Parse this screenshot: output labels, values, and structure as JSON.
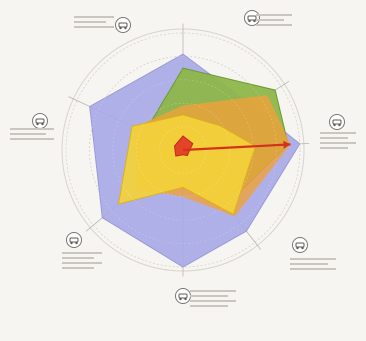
{
  "chart_data": {
    "type": "radar",
    "title": "",
    "axes": [],
    "axis_angles_deg": [
      -90,
      -33,
      -3,
      52,
      90,
      140,
      -155
    ],
    "range": [
      0,
      5
    ],
    "grid_levels": 5,
    "series": [
      {
        "values": [
          4.1,
          3.5,
          5.0,
          4.4,
          5.0,
          4.5,
          4.4
        ],
        "fill": "#a9a8e8",
        "stroke": "#9a99d8",
        "opacity": 0.9
      },
      {
        "values": [
          3.5,
          4.7,
          4.5,
          3.0,
          1.6,
          1.9,
          1.8
        ],
        "fill": "#8db64a",
        "stroke": "#6e9a33",
        "opacity": 0.95
      },
      {
        "values": [
          1.5,
          1.9,
          3.1,
          3.5,
          1.6,
          3.6,
          2.4
        ],
        "fill": "#f3d13a",
        "stroke": "#d9b21c",
        "opacity": 0.92
      },
      {
        "values": [
          0.6,
          0.5,
          0.3,
          0.3,
          0.2,
          0.4,
          0.4
        ],
        "fill": "#e23b26",
        "stroke": "#c02a18",
        "opacity": 0.95
      }
    ],
    "orange_overlay": {
      "values": [
        1.9,
        4.3,
        4.6,
        3.6,
        2.0,
        2.6,
        2.3
      ],
      "fill": "#f0a13a"
    },
    "arrow": {
      "from_axis": 2,
      "value": 4.6,
      "color": "#d3321c"
    },
    "grid": true,
    "legend": "none"
  },
  "icons": [
    "car-icon",
    "bicycle-icon",
    "bus-icon",
    "scooter-icon",
    "phone-icon",
    "walk-icon",
    "bike-rack-icon"
  ],
  "colors": {
    "background": "#f6f5f1",
    "axis": "#b8b6ae",
    "grid": "#cfc9bd",
    "label": "#9b9890"
  }
}
